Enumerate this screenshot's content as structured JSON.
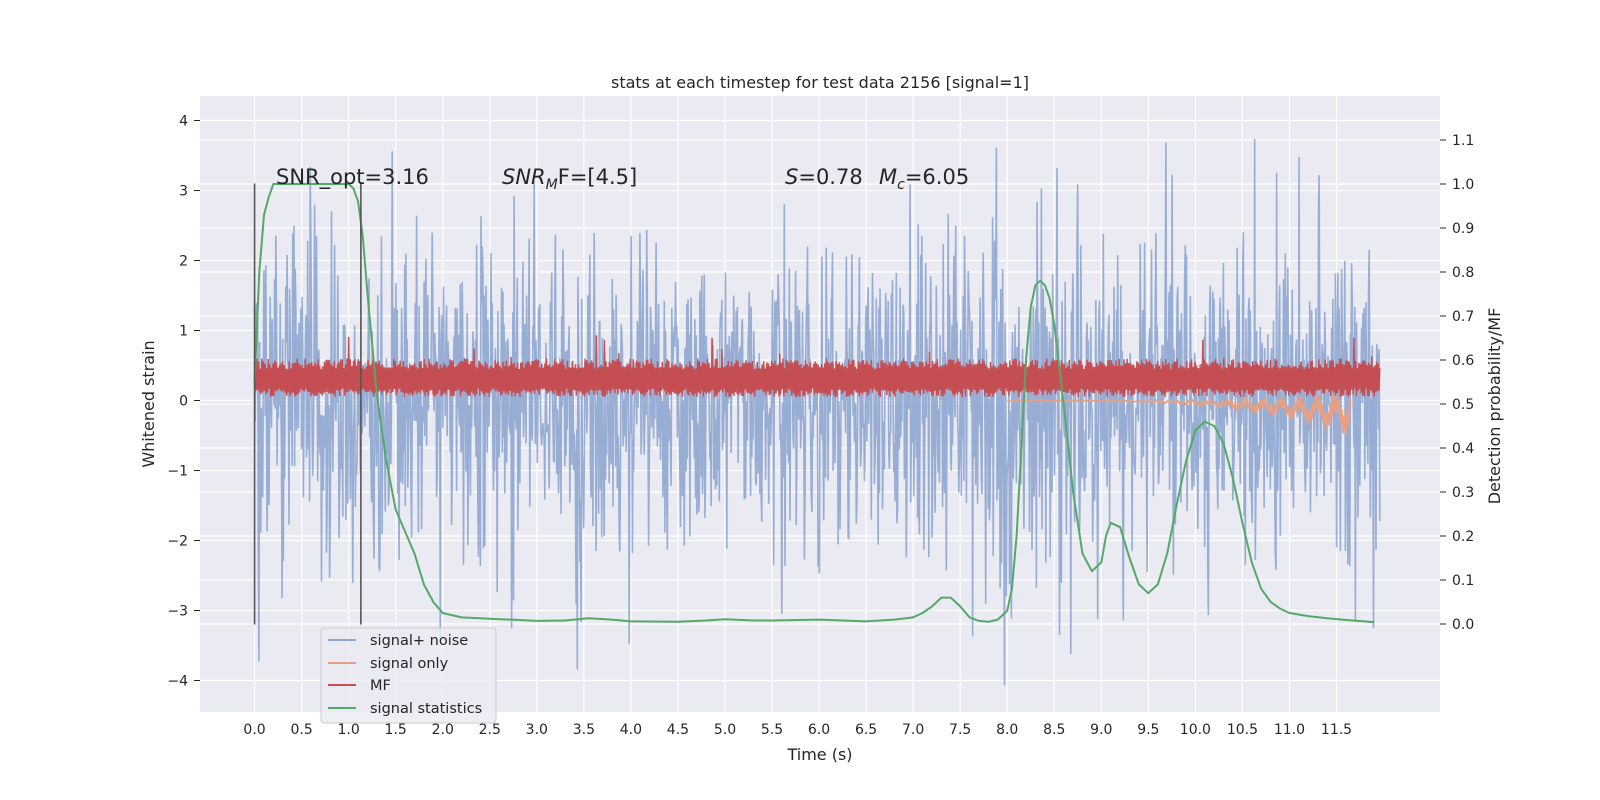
{
  "chart_data": {
    "type": "line",
    "title": "stats at each timestep for test data 2156 [signal=1]",
    "xlabel": "Time (s)",
    "ylabel_left": "Whitened strain",
    "ylabel_right": "Detection probability/MF",
    "xlim": [
      -0.58,
      12.6
    ],
    "ylim_left": [
      -4.45,
      4.35
    ],
    "ylim_right": [
      -0.2,
      1.2
    ],
    "x_ticks": [
      0.0,
      0.5,
      1.0,
      1.5,
      2.0,
      2.5,
      3.0,
      3.5,
      4.0,
      4.5,
      5.0,
      5.5,
      6.0,
      6.5,
      7.0,
      7.5,
      8.0,
      8.5,
      9.0,
      9.5,
      10.0,
      10.5,
      11.0,
      11.5
    ],
    "x_tick_labels": [
      "0.0",
      "0.5",
      "1.0",
      "1.5",
      "2.0",
      "2.5",
      "3.0",
      "3.5",
      "4.0",
      "4.5",
      "5.0",
      "5.5",
      "6.0",
      "6.5",
      "7.0",
      "7.5",
      "8.0",
      "8.5",
      "9.0",
      "9.5",
      "10.0",
      "10.5",
      "11.0",
      "11.5"
    ],
    "y_left_ticks": [
      -4,
      -3,
      -2,
      -1,
      0,
      1,
      2,
      3,
      4
    ],
    "y_left_tick_labels": [
      "−4",
      "−3",
      "−2",
      "−1",
      "0",
      "1",
      "2",
      "3",
      "4"
    ],
    "y_right_ticks": [
      0.0,
      0.1,
      0.2,
      0.3,
      0.4,
      0.5,
      0.6,
      0.7,
      0.8,
      0.9,
      1.0,
      1.1
    ],
    "y_right_tick_labels": [
      "0.0",
      "0.1",
      "0.2",
      "0.3",
      "0.4",
      "0.5",
      "0.6",
      "0.7",
      "0.8",
      "0.9",
      "1.0",
      "1.1"
    ],
    "grid": true,
    "legend_position": "lower-left",
    "annotations": {
      "snr_opt": "SNR_opt=3.16",
      "snr_mf_main": "SNR",
      "snr_mf_sub": "M",
      "snr_mf_rest": "F=[4.5]",
      "s_main": "S",
      "s_value": "=0.78",
      "mc_main": "M",
      "mc_sub": "c",
      "mc_value": "=6.05"
    },
    "markers": {
      "vlines": [
        0.0,
        1.13
      ],
      "ymin": -3.2,
      "ymax": 3.1
    },
    "series": [
      {
        "name": "signal+ noise",
        "color": "#8fa6d0",
        "axis": "left",
        "kind": "noise",
        "x_range": [
          0.0,
          11.96
        ],
        "typical_amplitude": 1.7,
        "peak_max": 3.97,
        "peak_min": -4.1
      },
      {
        "name": "signal only",
        "color": "#e7a083",
        "axis": "left",
        "kind": "chirp",
        "x_range": [
          8.0,
          11.65
        ],
        "min_value": -0.35
      },
      {
        "name": "MF",
        "color": "#c44e52",
        "axis": "left",
        "kind": "band",
        "x_range": [
          0.0,
          11.96
        ],
        "lower": 0.05,
        "upper": 0.6,
        "peak_max": 0.95
      },
      {
        "name": "signal statistics",
        "color": "#55a868",
        "axis": "right",
        "kind": "line",
        "x": [
          0.0,
          0.05,
          0.1,
          0.15,
          0.2,
          0.3,
          0.5,
          0.7,
          0.9,
          1.0,
          1.05,
          1.1,
          1.15,
          1.2,
          1.3,
          1.4,
          1.5,
          1.6,
          1.7,
          1.8,
          1.9,
          2.0,
          2.2,
          2.5,
          3.0,
          3.3,
          3.55,
          3.8,
          4.0,
          4.5,
          4.8,
          5.0,
          5.3,
          5.5,
          6.0,
          6.5,
          6.8,
          7.0,
          7.1,
          7.2,
          7.3,
          7.4,
          7.5,
          7.6,
          7.7,
          7.8,
          7.9,
          8.0,
          8.05,
          8.1,
          8.15,
          8.2,
          8.25,
          8.3,
          8.35,
          8.4,
          8.45,
          8.5,
          8.6,
          8.7,
          8.8,
          8.9,
          9.0,
          9.05,
          9.1,
          9.2,
          9.3,
          9.4,
          9.5,
          9.6,
          9.7,
          9.8,
          9.9,
          10.0,
          10.1,
          10.2,
          10.3,
          10.4,
          10.5,
          10.6,
          10.7,
          10.8,
          10.9,
          11.0,
          11.2,
          11.4,
          11.6,
          11.8,
          11.9
        ],
        "y": [
          0.55,
          0.8,
          0.93,
          0.97,
          1.0,
          1.0,
          1.0,
          1.0,
          1.0,
          1.0,
          0.99,
          0.96,
          0.88,
          0.75,
          0.52,
          0.37,
          0.26,
          0.21,
          0.16,
          0.09,
          0.05,
          0.025,
          0.015,
          0.012,
          0.007,
          0.008,
          0.013,
          0.01,
          0.006,
          0.005,
          0.008,
          0.011,
          0.008,
          0.008,
          0.01,
          0.006,
          0.01,
          0.015,
          0.025,
          0.04,
          0.06,
          0.06,
          0.04,
          0.015,
          0.007,
          0.005,
          0.01,
          0.03,
          0.08,
          0.2,
          0.4,
          0.6,
          0.72,
          0.77,
          0.78,
          0.77,
          0.74,
          0.68,
          0.5,
          0.3,
          0.16,
          0.12,
          0.14,
          0.2,
          0.23,
          0.22,
          0.15,
          0.09,
          0.07,
          0.09,
          0.16,
          0.27,
          0.37,
          0.44,
          0.46,
          0.45,
          0.41,
          0.33,
          0.23,
          0.14,
          0.08,
          0.05,
          0.035,
          0.025,
          0.018,
          0.013,
          0.009,
          0.006,
          0.004
        ]
      }
    ]
  }
}
